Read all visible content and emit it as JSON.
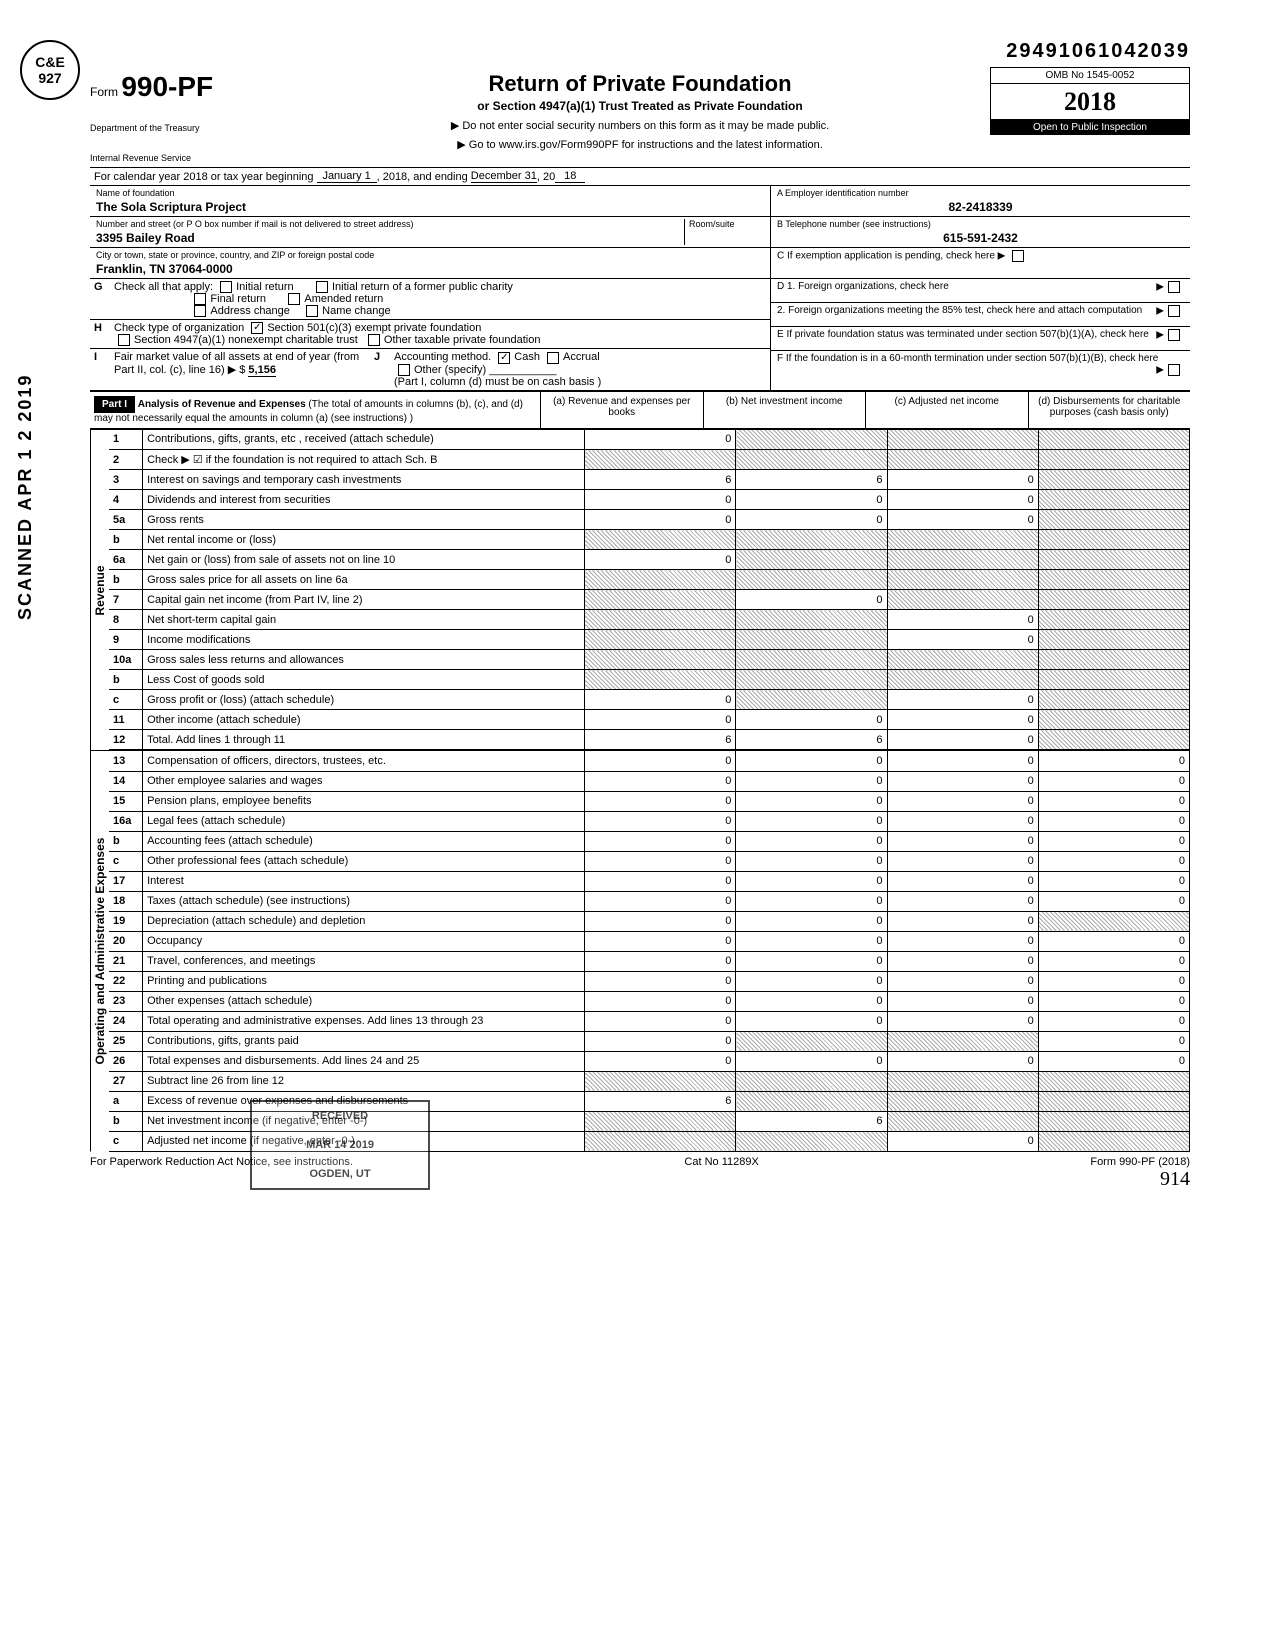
{
  "top_id": "29491061042039",
  "stamp": {
    "line1": "C&E",
    "line2": "927"
  },
  "vertical_stamp": "SCANNED APR 1 2 2019",
  "header": {
    "form_prefix": "Form",
    "form_number": "990-PF",
    "title": "Return of Private Foundation",
    "subtitle": "or Section 4947(a)(1) Trust Treated as Private Foundation",
    "instr1": "▶ Do not enter social security numbers on this form as it may be made public.",
    "instr2": "▶ Go to www.irs.gov/Form990PF for instructions and the latest information.",
    "dept1": "Department of the Treasury",
    "dept2": "Internal Revenue Service",
    "omb": "OMB No 1545-0052",
    "year": "2018",
    "inspection": "Open to Public Inspection"
  },
  "period": {
    "label": "For calendar year 2018 or tax year beginning",
    "begin": "January 1",
    "mid": ", 2018, and ending",
    "end": "December 31",
    "endyear_prefix": ", 20",
    "endyear": "18"
  },
  "foundation": {
    "name_label": "Name of foundation",
    "name": "The Sola Scriptura Project",
    "addr_label": "Number and street (or P O box number if mail is not delivered to street address)",
    "addr": "3395 Bailey Road",
    "room_label": "Room/suite",
    "city_label": "City or town, state or province, country, and ZIP or foreign postal code",
    "city": "Franklin, TN 37064-0000"
  },
  "box_a": {
    "label": "A  Employer identification number",
    "value": "82-2418339"
  },
  "box_b": {
    "label": "B  Telephone number (see instructions)",
    "value": "615-591-2432"
  },
  "box_c": {
    "label": "C  If exemption application is pending, check here ▶"
  },
  "box_d1": "D  1. Foreign organizations, check here",
  "box_d2": "2. Foreign organizations meeting the 85% test, check here and attach computation",
  "box_e": "E  If private foundation status was terminated under section 507(b)(1)(A), check here",
  "box_f": "F  If the foundation is in a 60-month termination under section 507(b)(1)(B), check here",
  "row_g_label": "G",
  "row_g_text": "Check all that apply:",
  "row_g_opts": [
    "Initial return",
    "Final return",
    "Address change",
    "Initial return of a former public charity",
    "Amended return",
    "Name change"
  ],
  "row_h_label": "H",
  "row_h_text": "Check type of organization",
  "row_h_opt1": "Section 501(c)(3) exempt private foundation",
  "row_h_opt2": "Section 4947(a)(1) nonexempt charitable trust",
  "row_h_opt3": "Other taxable private foundation",
  "row_i_label": "I",
  "row_i_text": "Fair market value of all assets at end of year (from Part II, col. (c), line 16) ▶ $",
  "row_i_value": "5,156",
  "row_j_label": "J",
  "row_j_text": "Accounting method.",
  "row_j_cash": "Cash",
  "row_j_accrual": "Accrual",
  "row_j_other": "Other (specify)",
  "row_j_note": "(Part I, column (d) must be on cash basis )",
  "part1": {
    "badge": "Part I",
    "title": "Analysis of Revenue and Expenses",
    "note": "(The total of amounts in columns (b), (c), and (d) may not necessarily equal the amounts in column (a) (see instructions) )",
    "col_a": "(a) Revenue and expenses per books",
    "col_b": "(b) Net investment income",
    "col_c": "(c) Adjusted net income",
    "col_d": "(d) Disbursements for charitable purposes (cash basis only)"
  },
  "side_revenue": "Revenue",
  "side_expenses": "Operating and Administrative Expenses",
  "rows": [
    {
      "n": "1",
      "desc": "Contributions, gifts, grants, etc , received (attach schedule)",
      "a": "0",
      "b": "S",
      "c": "S",
      "d": "S"
    },
    {
      "n": "2",
      "desc": "Check ▶ ☑ if the foundation is not required to attach Sch. B",
      "a": "S",
      "b": "S",
      "c": "S",
      "d": "S"
    },
    {
      "n": "3",
      "desc": "Interest on savings and temporary cash investments",
      "a": "6",
      "b": "6",
      "c": "0",
      "d": "S"
    },
    {
      "n": "4",
      "desc": "Dividends and interest from securities",
      "a": "0",
      "b": "0",
      "c": "0",
      "d": "S"
    },
    {
      "n": "5a",
      "desc": "Gross rents",
      "a": "0",
      "b": "0",
      "c": "0",
      "d": "S"
    },
    {
      "n": "b",
      "desc": "Net rental income or (loss)",
      "a": "S",
      "b": "S",
      "c": "S",
      "d": "S"
    },
    {
      "n": "6a",
      "desc": "Net gain or (loss) from sale of assets not on line 10",
      "a": "0",
      "b": "S",
      "c": "S",
      "d": "S"
    },
    {
      "n": "b",
      "desc": "Gross sales price for all assets on line 6a",
      "a": "S",
      "b": "S",
      "c": "S",
      "d": "S"
    },
    {
      "n": "7",
      "desc": "Capital gain net income (from Part IV, line 2)",
      "a": "S",
      "b": "0",
      "c": "S",
      "d": "S"
    },
    {
      "n": "8",
      "desc": "Net short-term capital gain",
      "a": "S",
      "b": "S",
      "c": "0",
      "d": "S"
    },
    {
      "n": "9",
      "desc": "Income modifications",
      "a": "S",
      "b": "S",
      "c": "0",
      "d": "S"
    },
    {
      "n": "10a",
      "desc": "Gross sales less returns and allowances",
      "a": "S",
      "b": "S",
      "c": "S",
      "d": "S"
    },
    {
      "n": "b",
      "desc": "Less Cost of goods sold",
      "a": "S",
      "b": "S",
      "c": "S",
      "d": "S"
    },
    {
      "n": "c",
      "desc": "Gross profit or (loss) (attach schedule)",
      "a": "0",
      "b": "S",
      "c": "0",
      "d": "S"
    },
    {
      "n": "11",
      "desc": "Other income (attach schedule)",
      "a": "0",
      "b": "0",
      "c": "0",
      "d": "S"
    },
    {
      "n": "12",
      "desc": "Total. Add lines 1 through 11",
      "a": "6",
      "b": "6",
      "c": "0",
      "d": "S"
    }
  ],
  "exp_rows": [
    {
      "n": "13",
      "desc": "Compensation of officers, directors, trustees, etc.",
      "a": "0",
      "b": "0",
      "c": "0",
      "d": "0"
    },
    {
      "n": "14",
      "desc": "Other employee salaries and wages",
      "a": "0",
      "b": "0",
      "c": "0",
      "d": "0"
    },
    {
      "n": "15",
      "desc": "Pension plans, employee benefits",
      "a": "0",
      "b": "0",
      "c": "0",
      "d": "0"
    },
    {
      "n": "16a",
      "desc": "Legal fees (attach schedule)",
      "a": "0",
      "b": "0",
      "c": "0",
      "d": "0"
    },
    {
      "n": "b",
      "desc": "Accounting fees (attach schedule)",
      "a": "0",
      "b": "0",
      "c": "0",
      "d": "0"
    },
    {
      "n": "c",
      "desc": "Other professional fees (attach schedule)",
      "a": "0",
      "b": "0",
      "c": "0",
      "d": "0"
    },
    {
      "n": "17",
      "desc": "Interest",
      "a": "0",
      "b": "0",
      "c": "0",
      "d": "0"
    },
    {
      "n": "18",
      "desc": "Taxes (attach schedule) (see instructions)",
      "a": "0",
      "b": "0",
      "c": "0",
      "d": "0"
    },
    {
      "n": "19",
      "desc": "Depreciation (attach schedule) and depletion",
      "a": "0",
      "b": "0",
      "c": "0",
      "d": "S"
    },
    {
      "n": "20",
      "desc": "Occupancy",
      "a": "0",
      "b": "0",
      "c": "0",
      "d": "0"
    },
    {
      "n": "21",
      "desc": "Travel, conferences, and meetings",
      "a": "0",
      "b": "0",
      "c": "0",
      "d": "0"
    },
    {
      "n": "22",
      "desc": "Printing and publications",
      "a": "0",
      "b": "0",
      "c": "0",
      "d": "0"
    },
    {
      "n": "23",
      "desc": "Other expenses (attach schedule)",
      "a": "0",
      "b": "0",
      "c": "0",
      "d": "0"
    },
    {
      "n": "24",
      "desc": "Total operating and administrative expenses. Add lines 13 through 23",
      "a": "0",
      "b": "0",
      "c": "0",
      "d": "0"
    },
    {
      "n": "25",
      "desc": "Contributions, gifts, grants paid",
      "a": "0",
      "b": "S",
      "c": "S",
      "d": "0"
    },
    {
      "n": "26",
      "desc": "Total expenses and disbursements. Add lines 24 and 25",
      "a": "0",
      "b": "0",
      "c": "0",
      "d": "0"
    },
    {
      "n": "27",
      "desc": "Subtract line 26 from line 12",
      "a": "S",
      "b": "S",
      "c": "S",
      "d": "S"
    },
    {
      "n": "a",
      "desc": "Excess of revenue over expenses and disbursements",
      "a": "6",
      "b": "S",
      "c": "S",
      "d": "S"
    },
    {
      "n": "b",
      "desc": "Net investment income (if negative, enter -0-)",
      "a": "S",
      "b": "6",
      "c": "S",
      "d": "S"
    },
    {
      "n": "c",
      "desc": "Adjusted net income (if negative, enter -0-)",
      "a": "S",
      "b": "S",
      "c": "0",
      "d": "S"
    }
  ],
  "received_stamp": {
    "l1": "RECEIVED",
    "l2": "MAR 14 2019",
    "l3": "OGDEN, UT"
  },
  "footer": {
    "left": "For Paperwork Reduction Act Notice, see instructions.",
    "center": "Cat No 11289X",
    "right": "Form 990-PF (2018)",
    "handwritten": "914"
  }
}
